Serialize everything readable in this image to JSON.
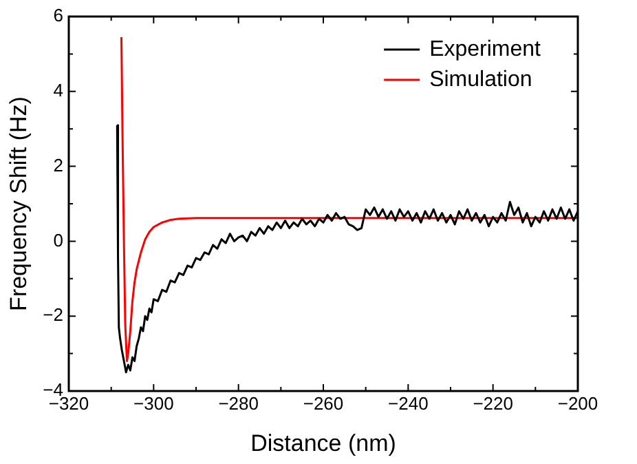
{
  "chart_data": {
    "type": "line",
    "xlabel": "Distance (nm)",
    "ylabel": "Frequency Shift (Hz)",
    "xlim": [
      -320,
      -200
    ],
    "ylim": [
      -4,
      6
    ],
    "xticks": [
      {
        "value": -320,
        "label": "−320"
      },
      {
        "value": -310,
        "label": null
      },
      {
        "value": -300,
        "label": "−300"
      },
      {
        "value": -290,
        "label": null
      },
      {
        "value": -280,
        "label": "−280"
      },
      {
        "value": -270,
        "label": null
      },
      {
        "value": -260,
        "label": "−260"
      },
      {
        "value": -250,
        "label": null
      },
      {
        "value": -240,
        "label": "−240"
      },
      {
        "value": -230,
        "label": null
      },
      {
        "value": -220,
        "label": "−220"
      },
      {
        "value": -210,
        "label": null
      },
      {
        "value": -200,
        "label": "−200"
      }
    ],
    "yticks": [
      {
        "value": -4,
        "label": "−4"
      },
      {
        "value": -3,
        "label": null
      },
      {
        "value": -2,
        "label": "−2"
      },
      {
        "value": -1,
        "label": null
      },
      0,
      {
        "value": 1,
        "label": null
      },
      2,
      {
        "value": 3,
        "label": null
      },
      4,
      {
        "value": 5,
        "label": null
      },
      6
    ],
    "grid": false,
    "legend": "top right",
    "marker": "none",
    "line_style": "solid",
    "series": [
      {
        "name": "Experiment",
        "color": "#000000",
        "x": [
          -308.6,
          -308.4,
          -308.2,
          -307.9,
          -307.5,
          -307,
          -306.5,
          -306,
          -305.5,
          -305,
          -304.5,
          -304,
          -303.5,
          -303,
          -302.5,
          -302,
          -301.5,
          -301,
          -300.5,
          -300,
          -299,
          -298,
          -297,
          -296,
          -295,
          -294,
          -293,
          -292,
          -291,
          -290,
          -289,
          -288,
          -287,
          -286,
          -285,
          -284,
          -283,
          -282,
          -281,
          -280,
          -279,
          -278,
          -277,
          -276,
          -275,
          -274,
          -273,
          -272,
          -271,
          -270,
          -269,
          -268,
          -267,
          -266,
          -265,
          -264,
          -263,
          -262,
          -261,
          -260,
          -259,
          -258,
          -257,
          -256,
          -255,
          -254,
          -253,
          -252,
          -251,
          -250.5,
          -250,
          -249,
          -248,
          -247,
          -246,
          -245,
          -244,
          -243,
          -242,
          -241,
          -240,
          -239,
          -238,
          -237,
          -236,
          -235,
          -234,
          -233,
          -232,
          -231,
          -230,
          -229,
          -228,
          -227,
          -226,
          -225,
          -224,
          -223,
          -222,
          -221,
          -220,
          -219,
          -218,
          -217,
          -216,
          -215,
          -214,
          -213,
          -212,
          -211,
          -210,
          -209,
          -208,
          -207,
          -206,
          -205,
          -204,
          -203,
          -202,
          -201,
          -200
        ],
        "values": [
          3.1,
          -0.4,
          -2.3,
          -2.6,
          -2.9,
          -3.2,
          -3.5,
          -3.3,
          -3.45,
          -3.1,
          -3.2,
          -2.8,
          -2.6,
          -2.3,
          -2.4,
          -2.0,
          -2.1,
          -1.8,
          -1.9,
          -1.55,
          -1.6,
          -1.3,
          -1.35,
          -1.05,
          -1.1,
          -0.85,
          -0.9,
          -0.65,
          -0.7,
          -0.45,
          -0.5,
          -0.3,
          -0.35,
          -0.1,
          -0.2,
          0.05,
          -0.05,
          0.2,
          0.0,
          0.1,
          0.15,
          0.0,
          0.25,
          0.15,
          0.35,
          0.2,
          0.4,
          0.3,
          0.5,
          0.35,
          0.55,
          0.35,
          0.5,
          0.4,
          0.6,
          0.45,
          0.55,
          0.4,
          0.6,
          0.5,
          0.7,
          0.55,
          0.75,
          0.6,
          0.65,
          0.45,
          0.4,
          0.3,
          0.35,
          0.6,
          0.85,
          0.7,
          0.9,
          0.65,
          0.85,
          0.6,
          0.8,
          0.55,
          0.85,
          0.65,
          0.8,
          0.55,
          0.75,
          0.5,
          0.8,
          0.6,
          0.85,
          0.55,
          0.75,
          0.5,
          0.7,
          0.45,
          0.8,
          0.6,
          0.85,
          0.55,
          0.75,
          0.5,
          0.7,
          0.4,
          0.65,
          0.5,
          0.75,
          0.55,
          1.05,
          0.7,
          0.9,
          0.5,
          0.75,
          0.4,
          0.65,
          0.5,
          0.8,
          0.55,
          0.85,
          0.6,
          0.9,
          0.6,
          0.85,
          0.55,
          0.8
        ]
      },
      {
        "name": "Simulation",
        "color": "#ff0000",
        "x": [
          -307.6,
          -307.3,
          -307,
          -306.7,
          -306.3,
          -306,
          -305.5,
          -305,
          -304.5,
          -304,
          -303,
          -302,
          -301,
          -300,
          -298,
          -296,
          -294,
          -290,
          -200
        ],
        "values": [
          5.45,
          2.5,
          0,
          -2.2,
          -3.2,
          -3.0,
          -2.4,
          -1.6,
          -1.1,
          -0.75,
          -0.3,
          0.05,
          0.25,
          0.38,
          0.5,
          0.57,
          0.6,
          0.62,
          0.62
        ]
      }
    ]
  }
}
